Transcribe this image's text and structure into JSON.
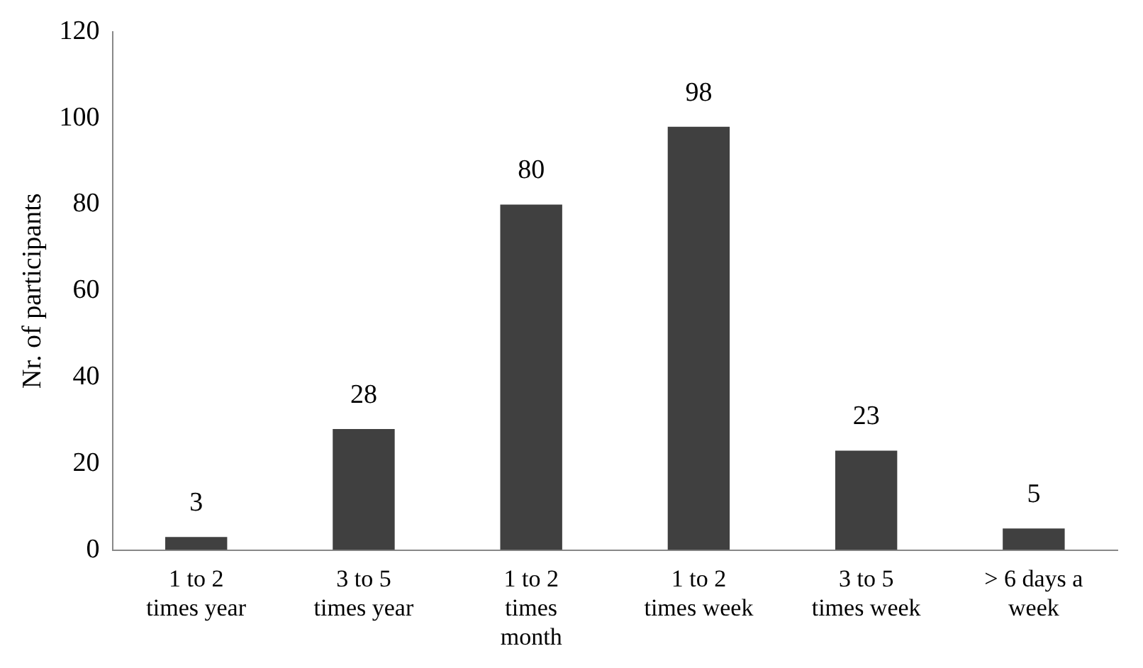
{
  "chart_data": {
    "type": "bar",
    "ylabel": "Nr. of participants",
    "categories": [
      "1 to 2 times year",
      "3 to 5 times year",
      "1 to 2 times month",
      "1 to 2 times week",
      "3 to 5 times week",
      "> 6 days a week"
    ],
    "values": [
      3,
      28,
      80,
      98,
      23,
      5
    ],
    "color": "#404040",
    "ylim": [
      0,
      120
    ],
    "yticks": [
      0,
      20,
      40,
      60,
      80,
      100,
      120
    ],
    "grid": false,
    "data_labels": true
  }
}
